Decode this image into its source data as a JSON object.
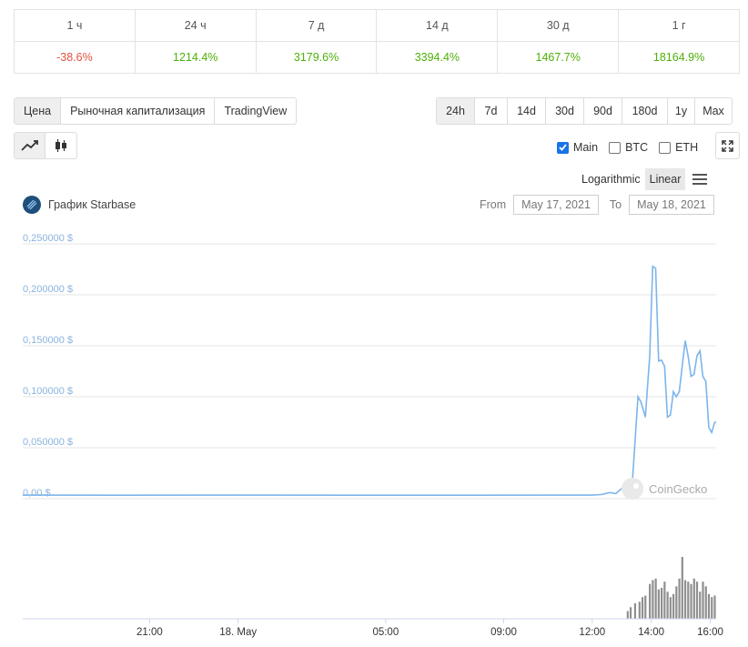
{
  "performance": {
    "periods": [
      "1 ч",
      "24 ч",
      "7 д",
      "14 д",
      "30 д",
      "1 г"
    ],
    "changes": [
      {
        "text": "-38.6%",
        "dir": "neg"
      },
      {
        "text": "1214.4%",
        "dir": "pos"
      },
      {
        "text": "3179.6%",
        "dir": "pos"
      },
      {
        "text": "3394.4%",
        "dir": "pos"
      },
      {
        "text": "1467.7%",
        "dir": "pos"
      },
      {
        "text": "18164.9%",
        "dir": "pos"
      }
    ]
  },
  "modes": {
    "price": "Цена",
    "market_cap": "Рыночная капитализация",
    "tradingview": "TradingView",
    "active": "price"
  },
  "ranges": {
    "items": [
      "24h",
      "7d",
      "14d",
      "30d",
      "90d",
      "180d",
      "1y",
      "Max"
    ],
    "active": "24h"
  },
  "chart_types": {
    "line": "line-chart-icon",
    "candle": "candlestick-icon",
    "active": "line"
  },
  "series_toggles": [
    {
      "label": "Main",
      "checked": true
    },
    {
      "label": "BTC",
      "checked": false
    },
    {
      "label": "ETH",
      "checked": false
    }
  ],
  "scale": {
    "log": "Logarithmic",
    "linear": "Linear",
    "active": "linear"
  },
  "chart_title": "График Starbase",
  "date_range": {
    "from_label": "From",
    "from": "May 17, 2021",
    "to_label": "To",
    "to": "May 18, 2021"
  },
  "watermark": "CoinGecko",
  "colors": {
    "line": "#7cb5ec",
    "volume": "#8f8f8f",
    "negative": "#e15241",
    "positive": "#4eaf0a",
    "check": "#1a73e8"
  },
  "chart_data": {
    "type": "line",
    "title": "График Starbase",
    "ylim": [
      0,
      0.25
    ],
    "y_ticks": [
      "0,00 $",
      "0,050000 $",
      "0,100000 $",
      "0,150000 $",
      "0,200000 $",
      "0,250000 $"
    ],
    "x_ticks": [
      "21:00",
      "18. May",
      "05:00",
      "09:00",
      "12:00",
      "14:00",
      "16:00"
    ],
    "x_tick_hours": [
      21,
      24,
      29,
      33,
      36,
      38,
      40
    ],
    "x_range_hours": [
      16.7,
      40.2
    ],
    "price_series": {
      "name": "Main",
      "x_hours": [
        16.7,
        20.0,
        24.0,
        28.0,
        32.0,
        36.0,
        36.3,
        36.6,
        36.8,
        37.0,
        37.2,
        37.35,
        37.55,
        37.65,
        37.8,
        37.95,
        38.05,
        38.15,
        38.25,
        38.35,
        38.45,
        38.55,
        38.65,
        38.75,
        38.85,
        38.95,
        39.05,
        39.15,
        39.25,
        39.35,
        39.45,
        39.55,
        39.65,
        39.75,
        39.85,
        39.95,
        40.05,
        40.15,
        40.2
      ],
      "values": [
        0.0035,
        0.0034,
        0.0035,
        0.0034,
        0.0034,
        0.0035,
        0.004,
        0.006,
        0.005,
        0.01,
        0.013,
        0.012,
        0.1,
        0.095,
        0.08,
        0.14,
        0.228,
        0.226,
        0.135,
        0.136,
        0.13,
        0.08,
        0.082,
        0.105,
        0.1,
        0.105,
        0.13,
        0.155,
        0.14,
        0.12,
        0.122,
        0.14,
        0.145,
        0.12,
        0.115,
        0.07,
        0.065,
        0.075,
        0.075
      ]
    },
    "volume_series": {
      "name": "Volume",
      "x_hours": [
        37.2,
        37.3,
        37.45,
        37.6,
        37.7,
        37.8,
        37.95,
        38.05,
        38.15,
        38.25,
        38.35,
        38.45,
        38.55,
        38.65,
        38.75,
        38.85,
        38.95,
        39.05,
        39.15,
        39.25,
        39.35,
        39.45,
        39.55,
        39.65,
        39.75,
        39.85,
        39.95,
        40.05,
        40.15
      ],
      "values": [
        0.1,
        0.15,
        0.2,
        0.22,
        0.28,
        0.3,
        0.45,
        0.5,
        0.52,
        0.38,
        0.4,
        0.48,
        0.35,
        0.28,
        0.32,
        0.42,
        0.52,
        0.8,
        0.5,
        0.48,
        0.45,
        0.52,
        0.48,
        0.35,
        0.48,
        0.42,
        0.32,
        0.28,
        0.3
      ]
    },
    "grid": true,
    "legend": "none"
  }
}
